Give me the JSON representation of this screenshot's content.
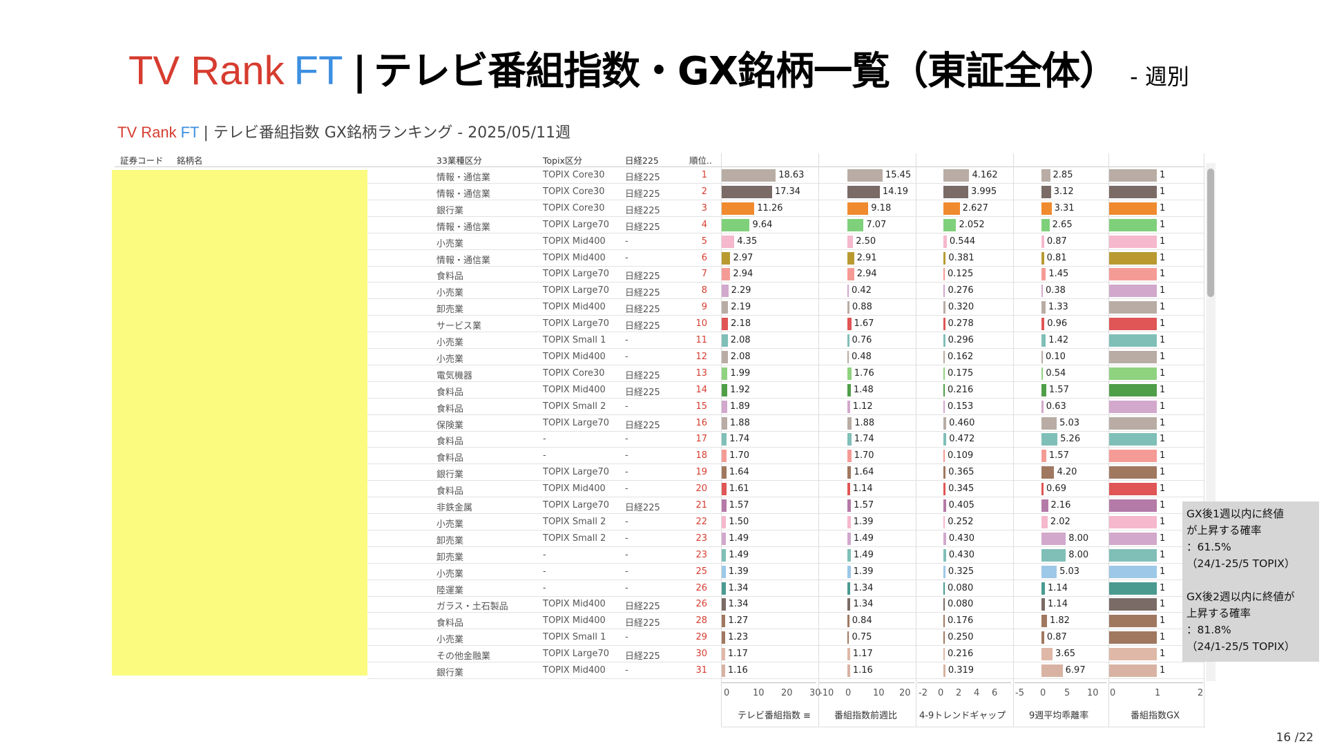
{
  "slide_title": {
    "tv": "TV Rank",
    "ft": "FT",
    "separator": "|",
    "main": "テレビ番組指数・GX銘柄一覧（東証全体）",
    "suffix": "- 週別"
  },
  "dashboard_title": {
    "tv": "TV Rank",
    "ft": "FT",
    "rest": "| テレビ番組指数 GX銘柄ランキング - 2025/05/11週"
  },
  "headers": {
    "code": "証券コード",
    "name": "銘柄名",
    "sector": "33業種区分",
    "topix": "Topix区分",
    "nikkei": "日経225",
    "rank": "順位.."
  },
  "rows": [
    {
      "sector": "情報・通信業",
      "topix": "TOPIX Core30",
      "nikkei": "日経225",
      "rank": "1",
      "idx": "18.63",
      "chg": "15.45",
      "gap": "4.162",
      "dev": "2.85",
      "gx": "1",
      "color": "#b8aca4"
    },
    {
      "sector": "情報・通信業",
      "topix": "TOPIX Core30",
      "nikkei": "日経225",
      "rank": "2",
      "idx": "17.34",
      "chg": "14.19",
      "gap": "3.995",
      "dev": "3.12",
      "gx": "1",
      "color": "#7a6b66"
    },
    {
      "sector": "銀行業",
      "topix": "TOPIX Core30",
      "nikkei": "日経225",
      "rank": "3",
      "idx": "11.26",
      "chg": "9.18",
      "gap": "2.627",
      "dev": "3.31",
      "gx": "1",
      "color": "#f08a2e"
    },
    {
      "sector": "情報・通信業",
      "topix": "TOPIX Large70",
      "nikkei": "日経225",
      "rank": "4",
      "idx": "9.64",
      "chg": "7.07",
      "gap": "2.052",
      "dev": "2.65",
      "gx": "1",
      "color": "#7fd07a"
    },
    {
      "sector": "小売業",
      "topix": "TOPIX Mid400",
      "nikkei": "-",
      "rank": "5",
      "idx": "4.35",
      "chg": "2.50",
      "gap": "0.544",
      "dev": "0.87",
      "gx": "1",
      "color": "#f5b8cc"
    },
    {
      "sector": "情報・通信業",
      "topix": "TOPIX Mid400",
      "nikkei": "-",
      "rank": "6",
      "idx": "2.97",
      "chg": "2.91",
      "gap": "0.381",
      "dev": "0.81",
      "gx": "1",
      "color": "#b89a30"
    },
    {
      "sector": "食料品",
      "topix": "TOPIX Large70",
      "nikkei": "日経225",
      "rank": "7",
      "idx": "2.94",
      "chg": "2.94",
      "gap": "0.125",
      "dev": "1.45",
      "gx": "1",
      "color": "#f59b96"
    },
    {
      "sector": "小売業",
      "topix": "TOPIX Large70",
      "nikkei": "日経225",
      "rank": "8",
      "idx": "2.29",
      "chg": "0.42",
      "gap": "0.276",
      "dev": "0.38",
      "gx": "1",
      "color": "#d2a8cc"
    },
    {
      "sector": "卸売業",
      "topix": "TOPIX Mid400",
      "nikkei": "日経225",
      "rank": "9",
      "idx": "2.19",
      "chg": "0.88",
      "gap": "0.320",
      "dev": "1.33",
      "gx": "1",
      "color": "#b8aca4"
    },
    {
      "sector": "サービス業",
      "topix": "TOPIX Large70",
      "nikkei": "日経225",
      "rank": "10",
      "idx": "2.18",
      "chg": "1.67",
      "gap": "0.278",
      "dev": "0.96",
      "gx": "1",
      "color": "#e05555"
    },
    {
      "sector": "小売業",
      "topix": "TOPIX Small 1",
      "nikkei": "-",
      "rank": "11",
      "idx": "2.08",
      "chg": "0.76",
      "gap": "0.296",
      "dev": "1.42",
      "gx": "1",
      "color": "#7fbfb8"
    },
    {
      "sector": "小売業",
      "topix": "TOPIX Mid400",
      "nikkei": "-",
      "rank": "12",
      "idx": "2.08",
      "chg": "0.48",
      "gap": "0.162",
      "dev": "0.10",
      "gx": "1",
      "color": "#b8aca4"
    },
    {
      "sector": "電気機器",
      "topix": "TOPIX Core30",
      "nikkei": "日経225",
      "rank": "13",
      "idx": "1.99",
      "chg": "1.76",
      "gap": "0.175",
      "dev": "0.54",
      "gx": "1",
      "color": "#8fd27f"
    },
    {
      "sector": "食料品",
      "topix": "TOPIX Mid400",
      "nikkei": "日経225",
      "rank": "14",
      "idx": "1.92",
      "chg": "1.48",
      "gap": "0.216",
      "dev": "1.57",
      "gx": "1",
      "color": "#4f9e48"
    },
    {
      "sector": "食料品",
      "topix": "TOPIX Small 2",
      "nikkei": "-",
      "rank": "15",
      "idx": "1.89",
      "chg": "1.12",
      "gap": "0.153",
      "dev": "0.63",
      "gx": "1",
      "color": "#d2a8cc"
    },
    {
      "sector": "保険業",
      "topix": "TOPIX Large70",
      "nikkei": "日経225",
      "rank": "16",
      "idx": "1.88",
      "chg": "1.88",
      "gap": "0.460",
      "dev": "5.03",
      "gx": "1",
      "color": "#b8aca4"
    },
    {
      "sector": "食料品",
      "topix": "-",
      "nikkei": "-",
      "rank": "17",
      "idx": "1.74",
      "chg": "1.74",
      "gap": "0.472",
      "dev": "5.26",
      "gx": "1",
      "color": "#7fbfb8"
    },
    {
      "sector": "食料品",
      "topix": "-",
      "nikkei": "-",
      "rank": "18",
      "idx": "1.70",
      "chg": "1.70",
      "gap": "0.109",
      "dev": "1.57",
      "gx": "1",
      "color": "#f59b96"
    },
    {
      "sector": "銀行業",
      "topix": "TOPIX Large70",
      "nikkei": "-",
      "rank": "19",
      "idx": "1.64",
      "chg": "1.64",
      "gap": "0.365",
      "dev": "4.20",
      "gx": "1",
      "color": "#a07860"
    },
    {
      "sector": "食料品",
      "topix": "TOPIX Mid400",
      "nikkei": "-",
      "rank": "20",
      "idx": "1.61",
      "chg": "1.14",
      "gap": "0.345",
      "dev": "0.69",
      "gx": "1",
      "color": "#e05555"
    },
    {
      "sector": "非鉄金属",
      "topix": "TOPIX Large70",
      "nikkei": "日経225",
      "rank": "21",
      "idx": "1.57",
      "chg": "1.57",
      "gap": "0.405",
      "dev": "2.16",
      "gx": "1",
      "color": "#b47aa8"
    },
    {
      "sector": "小売業",
      "topix": "TOPIX Small 2",
      "nikkei": "-",
      "rank": "22",
      "idx": "1.50",
      "chg": "1.39",
      "gap": "0.252",
      "dev": "2.02",
      "gx": "1",
      "color": "#f5b8cc"
    },
    {
      "sector": "卸売業",
      "topix": "TOPIX Small 2",
      "nikkei": "-",
      "rank": "23",
      "idx": "1.49",
      "chg": "1.49",
      "gap": "0.430",
      "dev": "8.00",
      "gx": "1",
      "color": "#d2a8cc"
    },
    {
      "sector": "卸売業",
      "topix": "-",
      "nikkei": "-",
      "rank": "23",
      "idx": "1.49",
      "chg": "1.49",
      "gap": "0.430",
      "dev": "8.00",
      "gx": "1",
      "color": "#7fbfb8"
    },
    {
      "sector": "小売業",
      "topix": "-",
      "nikkei": "-",
      "rank": "25",
      "idx": "1.39",
      "chg": "1.39",
      "gap": "0.325",
      "dev": "5.03",
      "gx": "1",
      "color": "#9dc8e8"
    },
    {
      "sector": "陸運業",
      "topix": "-",
      "nikkei": "-",
      "rank": "26",
      "idx": "1.34",
      "chg": "1.34",
      "gap": "0.080",
      "dev": "1.14",
      "gx": "1",
      "color": "#4a9a90"
    },
    {
      "sector": "ガラス・土石製品",
      "topix": "TOPIX Mid400",
      "nikkei": "日経225",
      "rank": "26",
      "idx": "1.34",
      "chg": "1.34",
      "gap": "0.080",
      "dev": "1.14",
      "gx": "1",
      "color": "#7a6b66"
    },
    {
      "sector": "食料品",
      "topix": "TOPIX Mid400",
      "nikkei": "日経225",
      "rank": "28",
      "idx": "1.27",
      "chg": "0.84",
      "gap": "0.176",
      "dev": "1.82",
      "gx": "1",
      "color": "#a07860"
    },
    {
      "sector": "小売業",
      "topix": "TOPIX Small 1",
      "nikkei": "-",
      "rank": "29",
      "idx": "1.23",
      "chg": "0.75",
      "gap": "0.250",
      "dev": "0.87",
      "gx": "1",
      "color": "#a07860"
    },
    {
      "sector": "その他金融業",
      "topix": "TOPIX Large70",
      "nikkei": "日経225",
      "rank": "30",
      "idx": "1.17",
      "chg": "1.17",
      "gap": "0.216",
      "dev": "3.65",
      "gx": "1",
      "color": "#dfb8a8"
    },
    {
      "sector": "銀行業",
      "topix": "TOPIX Mid400",
      "nikkei": "-",
      "rank": "31",
      "idx": "1.16",
      "chg": "1.16",
      "gap": "0.319",
      "dev": "6.97",
      "gx": "1",
      "color": "#d8b2a2"
    }
  ],
  "axes": [
    {
      "title": "テレビ番組指数",
      "ticks": [
        "0",
        "10",
        "20",
        "30"
      ],
      "sort_icon": "sort-icon"
    },
    {
      "title": "番組指数前週比",
      "ticks": [
        "-10",
        "0",
        "10",
        "20"
      ]
    },
    {
      "title": "4-9トレンドギャップ",
      "ticks": [
        "-2",
        "0",
        "2",
        "4",
        "6"
      ]
    },
    {
      "title": "9週平均乖離率",
      "ticks": [
        "-5",
        "0",
        "5",
        "10"
      ]
    },
    {
      "title": "番組指数GX",
      "ticks": [
        "0",
        "1",
        "2"
      ]
    }
  ],
  "note": {
    "line1": "GX後1週以内に終値",
    "line2": "が上昇する確率",
    "line3": "：61.5%",
    "line4": "（24/1-25/5 TOPIX）",
    "line5": "GX後2週以内に終値が",
    "line6": "上昇する確率",
    "line7": "：81.8%",
    "line8": "（24/1-25/5 TOPIX）"
  },
  "page_number": "16 /22"
}
